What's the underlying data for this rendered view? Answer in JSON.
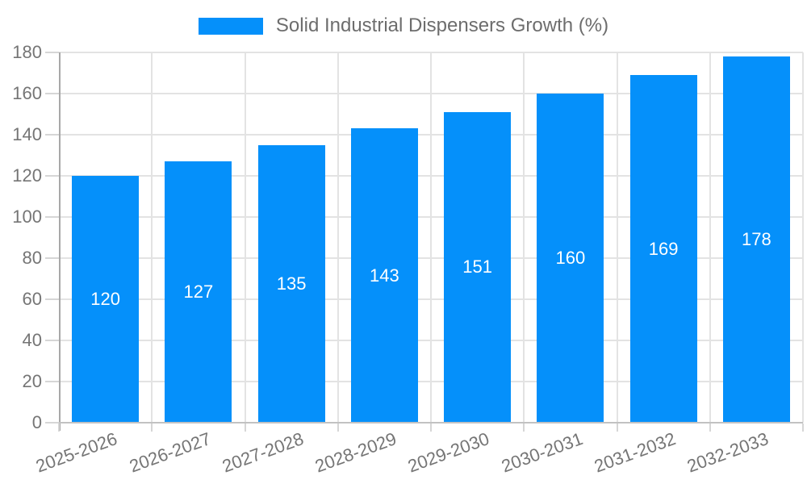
{
  "legend": {
    "label": "Solid Industrial Dispensers Growth (%)"
  },
  "chart_data": {
    "type": "bar",
    "title": "Solid Industrial Dispensers Growth (%)",
    "categories": [
      "2025-2026",
      "2026-2027",
      "2027-2028",
      "2028-2029",
      "2029-2030",
      "2030-2031",
      "2031-2032",
      "2032-2033"
    ],
    "values": [
      120,
      127,
      135,
      143,
      151,
      160,
      169,
      178
    ],
    "series": [
      {
        "name": "Solid Industrial Dispensers Growth (%)",
        "values": [
          120,
          127,
          135,
          143,
          151,
          160,
          169,
          178
        ]
      }
    ],
    "xlabel": "",
    "ylabel": "",
    "ylim": [
      0,
      180
    ],
    "ytick_step": 20,
    "ytick_labels": [
      "0",
      "20",
      "40",
      "60",
      "80",
      "100",
      "120",
      "140",
      "160",
      "180"
    ],
    "grid": true,
    "legend_position": "top-center",
    "value_label_position": "inside-center"
  },
  "colors": {
    "bar": "#0590FA",
    "grid": "#e3e3e3",
    "axis_y": "#a8a8a8",
    "axis_x": "#c2c2c2",
    "tick_mark": "#d6d6d6",
    "tick_text": "#757575",
    "legend_text": "#6d6d6d",
    "value_text": "#ffffff",
    "background": "#ffffff"
  }
}
